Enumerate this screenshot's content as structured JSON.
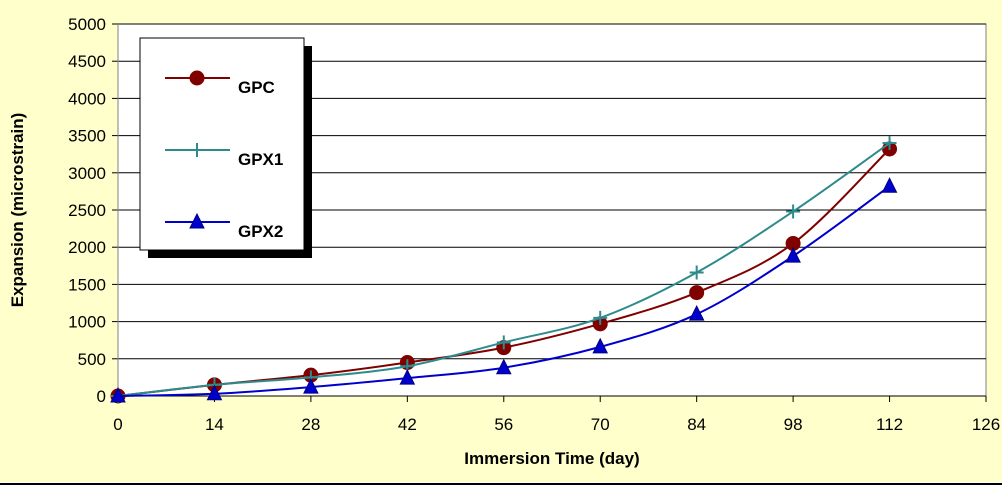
{
  "chart_data": {
    "type": "line",
    "title": "",
    "xlabel": "Immersion Time (day)",
    "ylabel": "Expansion (microstrain)",
    "x": [
      0,
      14,
      28,
      42,
      56,
      70,
      84,
      98,
      112
    ],
    "xlim": [
      0,
      126
    ],
    "ylim": [
      0,
      5000
    ],
    "x_ticks": [
      0,
      14,
      28,
      42,
      56,
      70,
      84,
      98,
      112,
      126
    ],
    "y_ticks": [
      0,
      500,
      1000,
      1500,
      2000,
      2500,
      3000,
      3500,
      4000,
      4500,
      5000
    ],
    "grid": "horizontal",
    "legend_position": "top-left",
    "series": [
      {
        "name": "GPC",
        "color": "#800000",
        "marker": "circle",
        "values": [
          0,
          150,
          280,
          450,
          650,
          970,
          1390,
          2050,
          3320
        ]
      },
      {
        "name": "GPX1",
        "color": "#2E8B8B",
        "marker": "plus",
        "values": [
          0,
          150,
          250,
          400,
          720,
          1050,
          1660,
          2480,
          3400
        ]
      },
      {
        "name": "GPX2",
        "color": "#0000CC",
        "marker": "triangle",
        "values": [
          0,
          30,
          120,
          240,
          380,
          660,
          1100,
          1880,
          2820
        ]
      }
    ]
  },
  "colors": {
    "background": "#FFFFCC",
    "plot_background": "#FFFFFF",
    "grid": "#000000"
  }
}
